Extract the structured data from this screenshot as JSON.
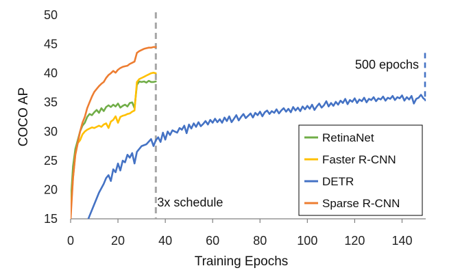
{
  "chart_data": {
    "type": "line",
    "title": "",
    "xlabel": "Training Epochs",
    "ylabel": "COCO AP",
    "xlim": [
      0,
      150
    ],
    "ylim": [
      15,
      50
    ],
    "xticks": [
      0,
      20,
      40,
      60,
      80,
      100,
      120,
      140
    ],
    "yticks": [
      15,
      20,
      25,
      30,
      35,
      40,
      45,
      50
    ],
    "grid": false,
    "legend": {
      "position": "bottom-right",
      "entries": [
        "RetinaNet",
        "Faster R-CNN",
        "DETR",
        "Sparse R-CNN"
      ]
    },
    "annotations": {
      "schedule_label": "3x schedule",
      "schedule_epoch": 36,
      "epochs_label": "500 epochs"
    },
    "series": [
      {
        "name": "RetinaNet",
        "color": "#70ad47",
        "x": [
          0,
          1,
          2,
          3,
          4,
          5,
          6,
          7,
          8,
          9,
          10,
          11,
          12,
          13,
          14,
          15,
          16,
          17,
          18,
          19,
          20,
          21,
          22,
          23,
          24,
          25,
          26,
          27,
          28,
          29,
          30,
          31,
          32,
          33,
          34,
          35,
          36
        ],
        "y": [
          17.5,
          24,
          27,
          28.5,
          30,
          31,
          31.5,
          32.5,
          33,
          32.8,
          33.3,
          33.7,
          33.2,
          34,
          33.5,
          34.2,
          34.5,
          34.2,
          34.6,
          34.3,
          34.8,
          34.1,
          34.4,
          34.6,
          34.3,
          34.9,
          35,
          34,
          38,
          38.6,
          38.5,
          38.6,
          38.4,
          38.7,
          38.5,
          38.5,
          38.6
        ]
      },
      {
        "name": "Faster R-CNN",
        "color": "#ffc000",
        "x": [
          0,
          1,
          2,
          3,
          4,
          5,
          6,
          7,
          8,
          9,
          10,
          11,
          12,
          13,
          14,
          15,
          16,
          17,
          18,
          19,
          20,
          21,
          22,
          23,
          24,
          25,
          26,
          27,
          28,
          29,
          30,
          31,
          32,
          33,
          34,
          35,
          36
        ],
        "y": [
          16,
          22,
          26,
          28,
          28.5,
          29.5,
          30,
          30.3,
          30.5,
          30.7,
          30.6,
          30.8,
          31,
          30.8,
          31.2,
          31.4,
          30.6,
          31.7,
          32,
          32.6,
          31.5,
          32.5,
          32.7,
          32.8,
          33,
          33.1,
          33.4,
          33.6,
          38.5,
          39,
          39.2,
          39.4,
          39.6,
          39.8,
          40,
          40.1,
          40
        ]
      },
      {
        "name": "DETR",
        "color": "#4472c4",
        "x": [
          7,
          8,
          10,
          12,
          14,
          15,
          16,
          17,
          18,
          19,
          20,
          21,
          22,
          23,
          24,
          25,
          26,
          27,
          28,
          30,
          32,
          34,
          35,
          36,
          37,
          38,
          39,
          40,
          41,
          42,
          43,
          44,
          45,
          46,
          47,
          48,
          49,
          50,
          51,
          52,
          53,
          54,
          55,
          56,
          57,
          58,
          59,
          60,
          61,
          62,
          63,
          64,
          65,
          66,
          67,
          68,
          69,
          70,
          71,
          72,
          73,
          74,
          75,
          76,
          77,
          78,
          79,
          80,
          81,
          82,
          83,
          84,
          85,
          86,
          87,
          88,
          89,
          90,
          91,
          92,
          93,
          94,
          95,
          96,
          97,
          98,
          99,
          100,
          101,
          102,
          103,
          104,
          105,
          106,
          107,
          108,
          109,
          110,
          111,
          112,
          113,
          114,
          115,
          116,
          117,
          118,
          119,
          120,
          121,
          122,
          123,
          124,
          125,
          126,
          127,
          128,
          129,
          130,
          131,
          132,
          133,
          134,
          135,
          136,
          137,
          138,
          139,
          140,
          141,
          142,
          143,
          144,
          145,
          146,
          147,
          148,
          149,
          150
        ],
        "y": [
          14.5,
          15.5,
          17.5,
          19.5,
          21,
          22,
          22.5,
          21.5,
          23.5,
          23,
          24.5,
          23.3,
          25,
          24.7,
          26,
          25.5,
          26.3,
          24.5,
          26.5,
          27.5,
          27.8,
          28.7,
          27.5,
          28.5,
          29,
          28.2,
          29.8,
          28.6,
          30,
          29.4,
          30.2,
          30,
          29.8,
          30.6,
          30.3,
          31,
          29.7,
          31.2,
          30.5,
          31.4,
          30.8,
          31.6,
          30.9,
          31.3,
          31.8,
          31.2,
          32,
          31.5,
          32.2,
          31.6,
          32.1,
          31.5,
          32.4,
          31.8,
          32.6,
          31.6,
          32.2,
          32.8,
          31.9,
          32.5,
          33,
          32.3,
          32.7,
          33.1,
          32.4,
          33.2,
          32.8,
          33.4,
          32.6,
          33.3,
          33.6,
          33,
          33.5,
          33.2,
          33.8,
          33.1,
          33.6,
          34,
          33.4,
          33.9,
          33.3,
          34.2,
          33.6,
          34.1,
          33.5,
          34.3,
          33.8,
          34.4,
          33.9,
          34.6,
          33.7,
          34.3,
          34.8,
          34.1,
          34.5,
          35.2,
          34.3,
          34.9,
          34.4,
          35.1,
          34.6,
          35.3,
          34.9,
          35.6,
          34.7,
          35.4,
          35.1,
          35.7,
          34.9,
          35.5,
          35.2,
          35.8,
          35,
          35.6,
          35.4,
          35.9,
          35.2,
          35.7,
          35.5,
          36,
          35.3,
          35.8,
          35.6,
          36.1,
          35.4,
          35.9,
          35.7,
          36.2,
          35.3,
          35.9,
          35.5,
          36.1,
          34.8,
          35.6,
          35.8,
          36.3,
          35.7,
          35.4
        ]
      },
      {
        "name": "Sparse R-CNN",
        "color": "#ed7d31",
        "x": [
          0,
          1,
          2,
          3,
          4,
          5,
          6,
          7,
          8,
          9,
          10,
          11,
          12,
          13,
          14,
          15,
          16,
          17,
          18,
          19,
          20,
          21,
          22,
          23,
          24,
          25,
          26,
          27,
          28,
          29,
          30,
          31,
          32,
          33,
          34,
          35,
          36
        ],
        "y": [
          15,
          22,
          26,
          28,
          30,
          31.5,
          32.5,
          34,
          35,
          36,
          36.8,
          37.3,
          37.8,
          38.2,
          38.5,
          39.2,
          39.7,
          40,
          40.4,
          40.1,
          40.6,
          40.9,
          41.1,
          41.2,
          41.3,
          41.6,
          41.8,
          42,
          43.5,
          43.8,
          44,
          44.2,
          44.3,
          44.4,
          44.4,
          44.5,
          44.5
        ]
      }
    ]
  }
}
